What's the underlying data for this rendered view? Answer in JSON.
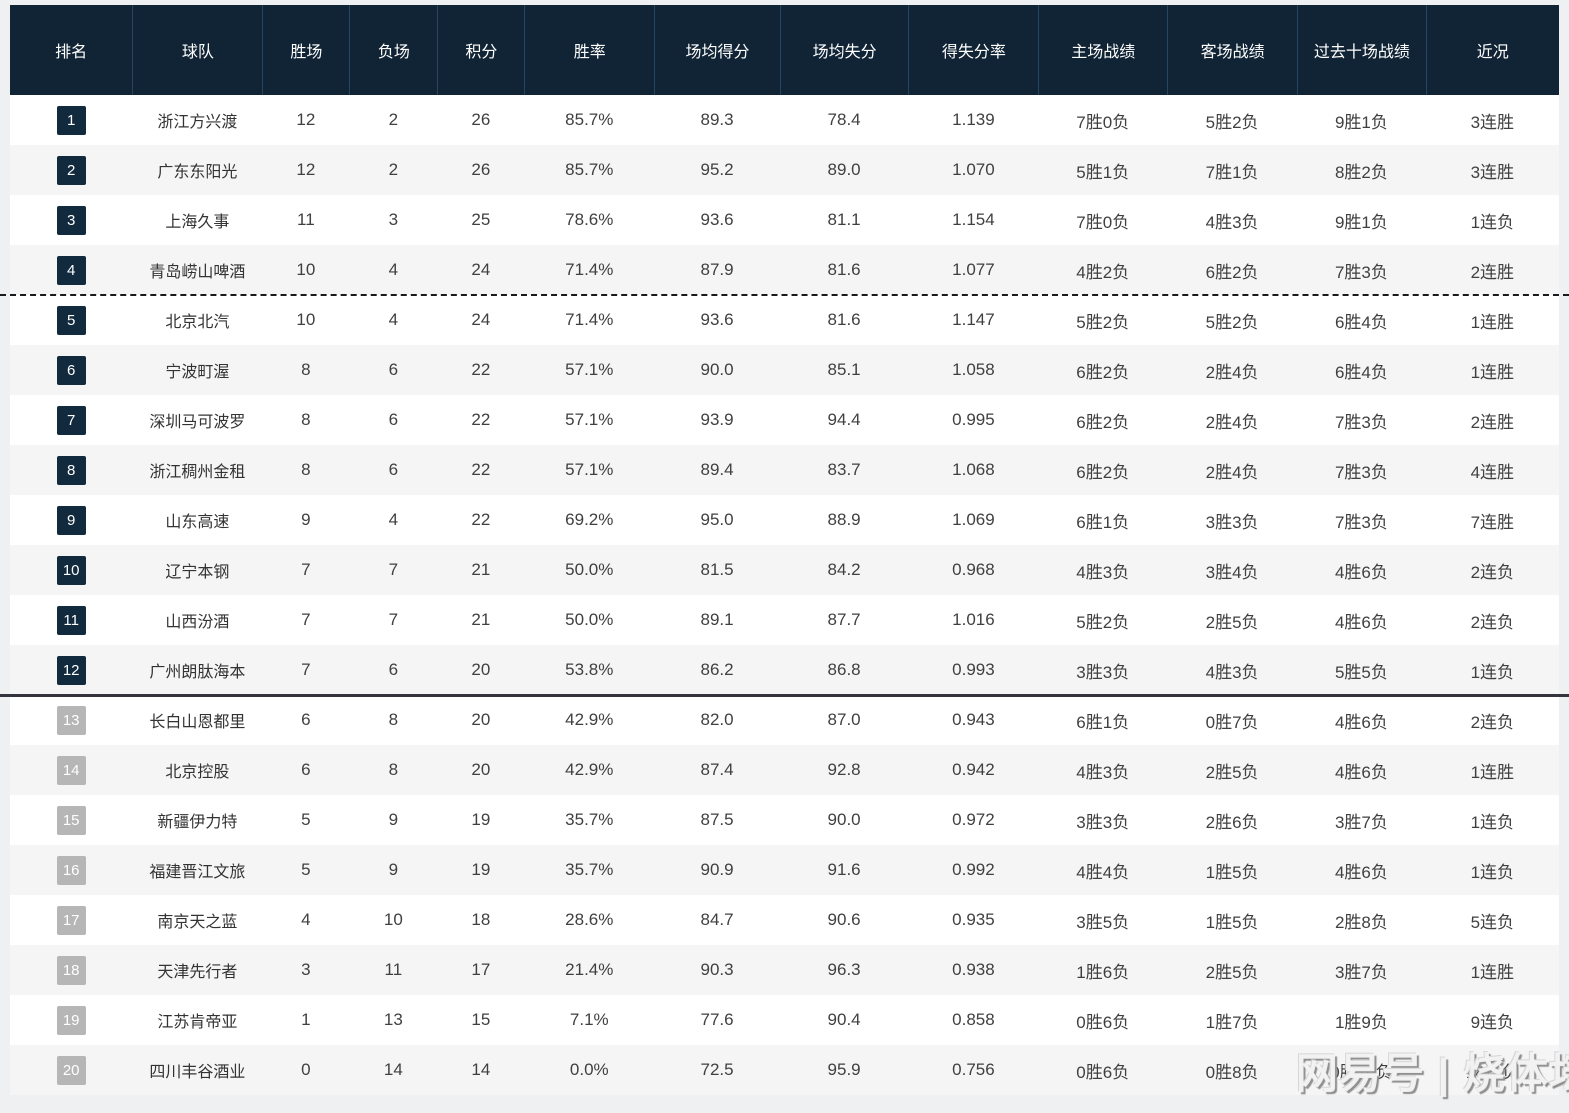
{
  "colors": {
    "header_bg": "#112435",
    "header_divider": "#27455e",
    "badge_navy": "#112a3e",
    "badge_gray": "#b6b6b6",
    "row_alt_bg": "#f5f5f6",
    "page_bg": "#eef0f1",
    "body_text": "#404040"
  },
  "watermark": {
    "text": "网易号 | 烧体坛"
  },
  "chart_data": {
    "type": "table",
    "columns": [
      "排名",
      "球队",
      "胜场",
      "负场",
      "积分",
      "胜率",
      "场均得分",
      "场均失分",
      "得失分率",
      "主场战绩",
      "客场战绩",
      "过去十场战绩",
      "近况"
    ],
    "column_keys": [
      "rank",
      "team",
      "wins",
      "losses",
      "points",
      "win_rate",
      "avg_scored",
      "avg_conceded",
      "ratio",
      "home_record",
      "away_record",
      "last_ten",
      "recent_form"
    ],
    "badge": {
      "gray_from_rank": 13
    },
    "separators": {
      "dashed_after_rank": 4,
      "solid_after_rank": 12
    },
    "rows": [
      {
        "rank": "1",
        "team": "浙江方兴渡",
        "wins": "12",
        "losses": "2",
        "points": "26",
        "win_rate": "85.7%",
        "avg_scored": "89.3",
        "avg_conceded": "78.4",
        "ratio": "1.139",
        "home_record": "7胜0负",
        "away_record": "5胜2负",
        "last_ten": "9胜1负",
        "recent_form": "3连胜"
      },
      {
        "rank": "2",
        "team": "广东东阳光",
        "wins": "12",
        "losses": "2",
        "points": "26",
        "win_rate": "85.7%",
        "avg_scored": "95.2",
        "avg_conceded": "89.0",
        "ratio": "1.070",
        "home_record": "5胜1负",
        "away_record": "7胜1负",
        "last_ten": "8胜2负",
        "recent_form": "3连胜"
      },
      {
        "rank": "3",
        "team": "上海久事",
        "wins": "11",
        "losses": "3",
        "points": "25",
        "win_rate": "78.6%",
        "avg_scored": "93.6",
        "avg_conceded": "81.1",
        "ratio": "1.154",
        "home_record": "7胜0负",
        "away_record": "4胜3负",
        "last_ten": "9胜1负",
        "recent_form": "1连负"
      },
      {
        "rank": "4",
        "team": "青岛崂山啤酒",
        "wins": "10",
        "losses": "4",
        "points": "24",
        "win_rate": "71.4%",
        "avg_scored": "87.9",
        "avg_conceded": "81.6",
        "ratio": "1.077",
        "home_record": "4胜2负",
        "away_record": "6胜2负",
        "last_ten": "7胜3负",
        "recent_form": "2连胜"
      },
      {
        "rank": "5",
        "team": "北京北汽",
        "wins": "10",
        "losses": "4",
        "points": "24",
        "win_rate": "71.4%",
        "avg_scored": "93.6",
        "avg_conceded": "81.6",
        "ratio": "1.147",
        "home_record": "5胜2负",
        "away_record": "5胜2负",
        "last_ten": "6胜4负",
        "recent_form": "1连胜"
      },
      {
        "rank": "6",
        "team": "宁波町渥",
        "wins": "8",
        "losses": "6",
        "points": "22",
        "win_rate": "57.1%",
        "avg_scored": "90.0",
        "avg_conceded": "85.1",
        "ratio": "1.058",
        "home_record": "6胜2负",
        "away_record": "2胜4负",
        "last_ten": "6胜4负",
        "recent_form": "1连胜"
      },
      {
        "rank": "7",
        "team": "深圳马可波罗",
        "wins": "8",
        "losses": "6",
        "points": "22",
        "win_rate": "57.1%",
        "avg_scored": "93.9",
        "avg_conceded": "94.4",
        "ratio": "0.995",
        "home_record": "6胜2负",
        "away_record": "2胜4负",
        "last_ten": "7胜3负",
        "recent_form": "2连胜"
      },
      {
        "rank": "8",
        "team": "浙江稠州金租",
        "wins": "8",
        "losses": "6",
        "points": "22",
        "win_rate": "57.1%",
        "avg_scored": "89.4",
        "avg_conceded": "83.7",
        "ratio": "1.068",
        "home_record": "6胜2负",
        "away_record": "2胜4负",
        "last_ten": "7胜3负",
        "recent_form": "4连胜"
      },
      {
        "rank": "9",
        "team": "山东高速",
        "wins": "9",
        "losses": "4",
        "points": "22",
        "win_rate": "69.2%",
        "avg_scored": "95.0",
        "avg_conceded": "88.9",
        "ratio": "1.069",
        "home_record": "6胜1负",
        "away_record": "3胜3负",
        "last_ten": "7胜3负",
        "recent_form": "7连胜"
      },
      {
        "rank": "10",
        "team": "辽宁本钢",
        "wins": "7",
        "losses": "7",
        "points": "21",
        "win_rate": "50.0%",
        "avg_scored": "81.5",
        "avg_conceded": "84.2",
        "ratio": "0.968",
        "home_record": "4胜3负",
        "away_record": "3胜4负",
        "last_ten": "4胜6负",
        "recent_form": "2连负"
      },
      {
        "rank": "11",
        "team": "山西汾酒",
        "wins": "7",
        "losses": "7",
        "points": "21",
        "win_rate": "50.0%",
        "avg_scored": "89.1",
        "avg_conceded": "87.7",
        "ratio": "1.016",
        "home_record": "5胜2负",
        "away_record": "2胜5负",
        "last_ten": "4胜6负",
        "recent_form": "2连负"
      },
      {
        "rank": "12",
        "team": "广州朗肽海本",
        "wins": "7",
        "losses": "6",
        "points": "20",
        "win_rate": "53.8%",
        "avg_scored": "86.2",
        "avg_conceded": "86.8",
        "ratio": "0.993",
        "home_record": "3胜3负",
        "away_record": "4胜3负",
        "last_ten": "5胜5负",
        "recent_form": "1连负"
      },
      {
        "rank": "13",
        "team": "长白山恩都里",
        "wins": "6",
        "losses": "8",
        "points": "20",
        "win_rate": "42.9%",
        "avg_scored": "82.0",
        "avg_conceded": "87.0",
        "ratio": "0.943",
        "home_record": "6胜1负",
        "away_record": "0胜7负",
        "last_ten": "4胜6负",
        "recent_form": "2连负"
      },
      {
        "rank": "14",
        "team": "北京控股",
        "wins": "6",
        "losses": "8",
        "points": "20",
        "win_rate": "42.9%",
        "avg_scored": "87.4",
        "avg_conceded": "92.8",
        "ratio": "0.942",
        "home_record": "4胜3负",
        "away_record": "2胜5负",
        "last_ten": "4胜6负",
        "recent_form": "1连胜"
      },
      {
        "rank": "15",
        "team": "新疆伊力特",
        "wins": "5",
        "losses": "9",
        "points": "19",
        "win_rate": "35.7%",
        "avg_scored": "87.5",
        "avg_conceded": "90.0",
        "ratio": "0.972",
        "home_record": "3胜3负",
        "away_record": "2胜6负",
        "last_ten": "3胜7负",
        "recent_form": "1连负"
      },
      {
        "rank": "16",
        "team": "福建晋江文旅",
        "wins": "5",
        "losses": "9",
        "points": "19",
        "win_rate": "35.7%",
        "avg_scored": "90.9",
        "avg_conceded": "91.6",
        "ratio": "0.992",
        "home_record": "4胜4负",
        "away_record": "1胜5负",
        "last_ten": "4胜6负",
        "recent_form": "1连负"
      },
      {
        "rank": "17",
        "team": "南京天之蓝",
        "wins": "4",
        "losses": "10",
        "points": "18",
        "win_rate": "28.6%",
        "avg_scored": "84.7",
        "avg_conceded": "90.6",
        "ratio": "0.935",
        "home_record": "3胜5负",
        "away_record": "1胜5负",
        "last_ten": "2胜8负",
        "recent_form": "5连负"
      },
      {
        "rank": "18",
        "team": "天津先行者",
        "wins": "3",
        "losses": "11",
        "points": "17",
        "win_rate": "21.4%",
        "avg_scored": "90.3",
        "avg_conceded": "96.3",
        "ratio": "0.938",
        "home_record": "1胜6负",
        "away_record": "2胜5负",
        "last_ten": "3胜7负",
        "recent_form": "1连胜"
      },
      {
        "rank": "19",
        "team": "江苏肯帝亚",
        "wins": "1",
        "losses": "13",
        "points": "15",
        "win_rate": "7.1%",
        "avg_scored": "77.6",
        "avg_conceded": "90.4",
        "ratio": "0.858",
        "home_record": "0胜6负",
        "away_record": "1胜7负",
        "last_ten": "1胜9负",
        "recent_form": "9连负"
      },
      {
        "rank": "20",
        "team": "四川丰谷酒业",
        "wins": "0",
        "losses": "14",
        "points": "14",
        "win_rate": "0.0%",
        "avg_scored": "72.5",
        "avg_conceded": "95.9",
        "ratio": "0.756",
        "home_record": "0胜6负",
        "away_record": "0胜8负",
        "last_ten": "0胜10负",
        "recent_form": "14连负"
      }
    ]
  }
}
